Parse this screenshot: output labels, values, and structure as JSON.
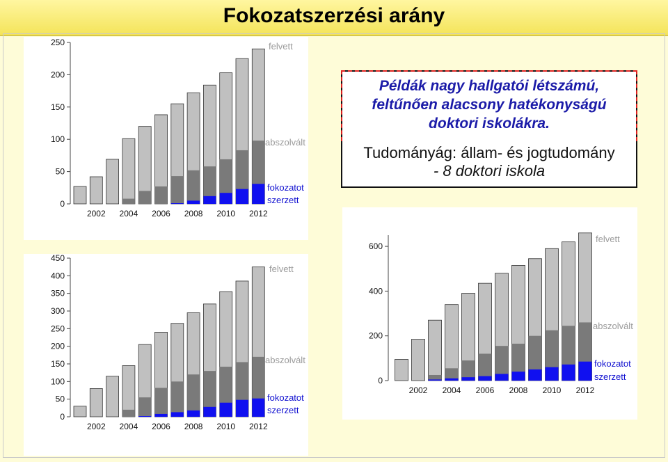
{
  "slide": {
    "title": "Fokozatszerzési arány",
    "callout": {
      "line1": "Példák nagy hallgatói létszámú,",
      "line2": "feltűnően alacsony hatékonyságú",
      "line3": "doktori iskolákra.",
      "line4": "Tudományág: állam- és jogtudomány",
      "line5": "- 8 doktori iskola"
    }
  },
  "colors": {
    "felvett": "#c0c0c0",
    "abszolvalt": "#7a7a7a",
    "fokozatot_szerzett": "#1010f0",
    "label_gray": "#9a9a9a",
    "label_blue": "#1010d0"
  },
  "chart_data": [
    {
      "type": "bar",
      "categories": [
        "2001",
        "2002",
        "2003",
        "2004",
        "2005",
        "2006",
        "2007",
        "2008",
        "2009",
        "2010",
        "2011",
        "2012"
      ],
      "x_tick_labels": [
        "2002",
        "2004",
        "2006",
        "2008",
        "2010",
        "2012"
      ],
      "y_ticks": [
        0,
        50,
        100,
        150,
        200,
        250
      ],
      "ylim": [
        0,
        250
      ],
      "series": [
        {
          "name": "felvett",
          "values": [
            27,
            42,
            69,
            101,
            120,
            138,
            155,
            172,
            184,
            203,
            225,
            240
          ]
        },
        {
          "name": "abszolvált",
          "values": [
            0,
            0,
            0,
            8,
            20,
            27,
            43,
            52,
            58,
            69,
            83,
            98
          ]
        },
        {
          "name": "fokozatot szerzett",
          "values": [
            0,
            0,
            0,
            0,
            0,
            0,
            1,
            5,
            12,
            17,
            23,
            31
          ]
        }
      ],
      "legend_labels": {
        "felvett": "felvett",
        "abszolvalt": "abszolvált",
        "fokozatot1": "fokozatot",
        "fokozatot2": "szerzett"
      }
    },
    {
      "type": "bar",
      "categories": [
        "2001",
        "2002",
        "2003",
        "2004",
        "2005",
        "2006",
        "2007",
        "2008",
        "2009",
        "2010",
        "2011",
        "2012"
      ],
      "x_tick_labels": [
        "2002",
        "2004",
        "2006",
        "2008",
        "2010",
        "2012"
      ],
      "y_ticks": [
        0,
        50,
        100,
        150,
        200,
        250,
        300,
        350,
        400,
        450
      ],
      "ylim": [
        0,
        450
      ],
      "series": [
        {
          "name": "felvett",
          "values": [
            30,
            80,
            115,
            145,
            205,
            240,
            265,
            295,
            320,
            355,
            385,
            425
          ]
        },
        {
          "name": "abszolvált",
          "values": [
            0,
            0,
            0,
            20,
            55,
            82,
            100,
            120,
            130,
            142,
            155,
            170
          ]
        },
        {
          "name": "fokozatot szerzett",
          "values": [
            0,
            0,
            0,
            0,
            2,
            8,
            13,
            18,
            28,
            40,
            48,
            52
          ]
        }
      ],
      "legend_labels": {
        "felvett": "felvett",
        "abszolvalt": "abszolvált",
        "fokozatot1": "fokozatot",
        "fokozatot2": "szerzett"
      }
    },
    {
      "type": "bar",
      "categories": [
        "2001",
        "2002",
        "2003",
        "2004",
        "2005",
        "2006",
        "2007",
        "2008",
        "2009",
        "2010",
        "2011",
        "2012"
      ],
      "x_tick_labels": [
        "2002",
        "2004",
        "2006",
        "2008",
        "2010",
        "2012"
      ],
      "y_ticks": [
        0,
        200,
        400,
        600
      ],
      "ylim": [
        0,
        650
      ],
      "series": [
        {
          "name": "felvett",
          "values": [
            95,
            185,
            270,
            340,
            390,
            435,
            480,
            515,
            545,
            590,
            620,
            660
          ]
        },
        {
          "name": "abszolvált",
          "values": [
            0,
            0,
            25,
            55,
            90,
            120,
            155,
            165,
            200,
            225,
            245,
            260
          ]
        },
        {
          "name": "fokozatot szerzett",
          "values": [
            0,
            0,
            5,
            10,
            15,
            20,
            30,
            40,
            50,
            60,
            72,
            85
          ]
        }
      ],
      "legend_labels": {
        "felvett": "felvett",
        "abszolvalt": "abszolvált",
        "fokozatot1": "fokozatot",
        "fokozatot2": "szerzett"
      }
    }
  ]
}
